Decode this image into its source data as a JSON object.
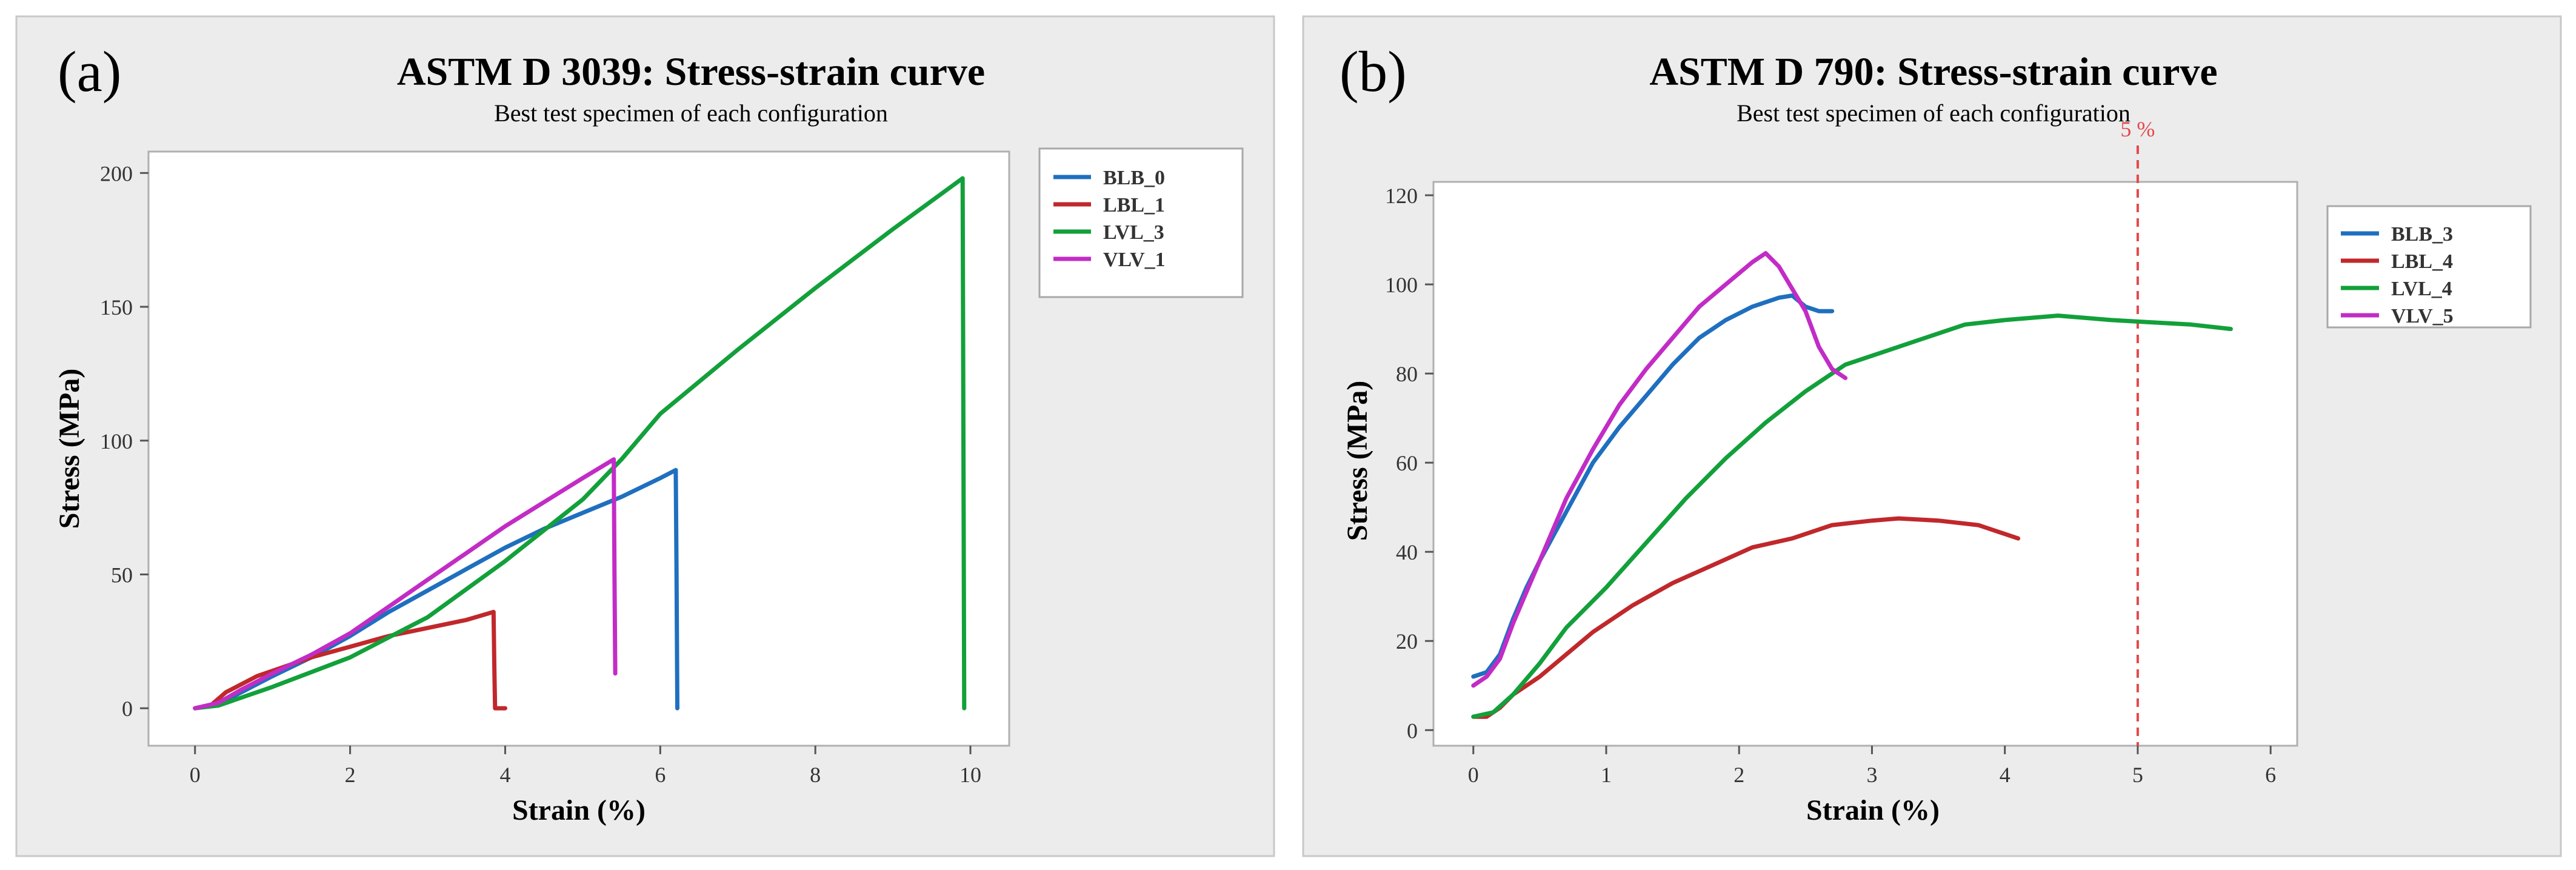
{
  "chart_data": [
    {
      "type": "line",
      "panel_label": "(a)",
      "title": "ASTM D 3039: Stress-strain curve",
      "subtitle": "Best test specimen of each configuration",
      "xlabel": "Strain (%)",
      "ylabel": "Stress (MPa)",
      "xlim": [
        -0.6,
        10.5
      ],
      "ylim": [
        -14,
        208
      ],
      "xticks": [
        0,
        2,
        4,
        6,
        8,
        10
      ],
      "yticks": [
        0,
        50,
        100,
        150,
        200
      ],
      "grid": false,
      "legend_position": "right",
      "series": [
        {
          "name": "BLB_0",
          "color": "#1f6fbf",
          "points": [
            [
              0,
              0
            ],
            [
              0.3,
              1.5
            ],
            [
              0.6,
              6
            ],
            [
              1,
              12
            ],
            [
              1.5,
              19
            ],
            [
              2,
              27
            ],
            [
              2.5,
              36
            ],
            [
              3,
              44
            ],
            [
              3.5,
              52
            ],
            [
              4,
              60
            ],
            [
              4.5,
              67
            ],
            [
              5,
              73
            ],
            [
              5.5,
              79
            ],
            [
              6,
              86
            ],
            [
              6.2,
              89
            ],
            [
              6.21,
              50
            ],
            [
              6.22,
              0
            ]
          ]
        },
        {
          "name": "LBL_1",
          "color": "#c0282b",
          "points": [
            [
              0,
              0
            ],
            [
              0.2,
              1
            ],
            [
              0.4,
              6
            ],
            [
              0.6,
              9
            ],
            [
              0.8,
              12
            ],
            [
              1,
              14
            ],
            [
              1.5,
              19
            ],
            [
              2,
              23
            ],
            [
              2.5,
              27
            ],
            [
              3,
              30
            ],
            [
              3.5,
              33
            ],
            [
              3.85,
              36
            ],
            [
              3.86,
              15
            ],
            [
              3.87,
              0
            ],
            [
              4,
              0
            ]
          ]
        },
        {
          "name": "LVL_3",
          "color": "#12a03a",
          "points": [
            [
              0,
              0
            ],
            [
              0.3,
              1
            ],
            [
              0.5,
              3
            ],
            [
              1,
              8
            ],
            [
              2,
              19
            ],
            [
              3,
              34
            ],
            [
              4,
              55
            ],
            [
              5,
              78
            ],
            [
              5.5,
              93
            ],
            [
              6,
              110
            ],
            [
              7,
              134
            ],
            [
              8,
              157
            ],
            [
              9,
              179
            ],
            [
              9.9,
              198
            ],
            [
              9.91,
              100
            ],
            [
              9.92,
              0
            ]
          ]
        },
        {
          "name": "VLV_1",
          "color": "#c22cc6",
          "points": [
            [
              0,
              0
            ],
            [
              0.3,
              2
            ],
            [
              0.6,
              7
            ],
            [
              1,
              13
            ],
            [
              1.5,
              20
            ],
            [
              2,
              28
            ],
            [
              2.5,
              38
            ],
            [
              3,
              48
            ],
            [
              3.5,
              58
            ],
            [
              4,
              68
            ],
            [
              4.5,
              77
            ],
            [
              5,
              86
            ],
            [
              5.4,
              93
            ],
            [
              5.41,
              50
            ],
            [
              5.42,
              13
            ]
          ]
        }
      ]
    },
    {
      "type": "line",
      "panel_label": "(b)",
      "title": "ASTM D 790: Stress-strain curve",
      "subtitle": "Best test specimen of each configuration",
      "xlabel": "Strain (%)",
      "ylabel": "Stress (MPa)",
      "xlim": [
        -0.3,
        6.2
      ],
      "ylim": [
        -3.5,
        123
      ],
      "xticks": [
        0,
        1,
        2,
        3,
        4,
        5,
        6
      ],
      "yticks": [
        0,
        20,
        40,
        60,
        80,
        100,
        120
      ],
      "grid": false,
      "legend_position": "right",
      "reference_line": {
        "x": 5,
        "label": "5 %",
        "color": "#e24a4a"
      },
      "series": [
        {
          "name": "BLB_3",
          "color": "#1f6fbf",
          "points": [
            [
              0,
              12
            ],
            [
              0.1,
              13
            ],
            [
              0.2,
              17
            ],
            [
              0.3,
              25
            ],
            [
              0.4,
              32
            ],
            [
              0.5,
              38
            ],
            [
              0.7,
              49
            ],
            [
              0.9,
              60
            ],
            [
              1.1,
              68
            ],
            [
              1.3,
              75
            ],
            [
              1.5,
              82
            ],
            [
              1.7,
              88
            ],
            [
              1.9,
              92
            ],
            [
              2.1,
              95
            ],
            [
              2.3,
              97
            ],
            [
              2.4,
              97.5
            ],
            [
              2.5,
              95
            ],
            [
              2.6,
              94
            ],
            [
              2.7,
              94
            ]
          ]
        },
        {
          "name": "LBL_4",
          "color": "#c0282b",
          "points": [
            [
              0,
              3
            ],
            [
              0.1,
              3
            ],
            [
              0.2,
              5
            ],
            [
              0.3,
              8
            ],
            [
              0.5,
              12
            ],
            [
              0.7,
              17
            ],
            [
              0.9,
              22
            ],
            [
              1.2,
              28
            ],
            [
              1.5,
              33
            ],
            [
              1.8,
              37
            ],
            [
              2.1,
              41
            ],
            [
              2.4,
              43
            ],
            [
              2.7,
              46
            ],
            [
              3,
              47
            ],
            [
              3.2,
              47.5
            ],
            [
              3.5,
              47
            ],
            [
              3.8,
              46
            ],
            [
              4.1,
              43
            ]
          ]
        },
        {
          "name": "LVL_4",
          "color": "#12a03a",
          "points": [
            [
              0,
              3
            ],
            [
              0.15,
              4
            ],
            [
              0.3,
              8
            ],
            [
              0.5,
              15
            ],
            [
              0.7,
              23
            ],
            [
              1,
              32
            ],
            [
              1.3,
              42
            ],
            [
              1.6,
              52
            ],
            [
              1.9,
              61
            ],
            [
              2.2,
              69
            ],
            [
              2.5,
              76
            ],
            [
              2.8,
              82
            ],
            [
              3.1,
              85
            ],
            [
              3.4,
              88
            ],
            [
              3.7,
              91
            ],
            [
              4,
              92
            ],
            [
              4.4,
              93
            ],
            [
              4.8,
              92
            ],
            [
              5.1,
              91.5
            ],
            [
              5.4,
              91
            ],
            [
              5.7,
              90
            ]
          ]
        },
        {
          "name": "VLV_5",
          "color": "#c22cc6",
          "points": [
            [
              0,
              10
            ],
            [
              0.1,
              12
            ],
            [
              0.2,
              16
            ],
            [
              0.3,
              24
            ],
            [
              0.5,
              38
            ],
            [
              0.7,
              52
            ],
            [
              0.9,
              63
            ],
            [
              1.1,
              73
            ],
            [
              1.3,
              81
            ],
            [
              1.5,
              88
            ],
            [
              1.7,
              95
            ],
            [
              1.9,
              100
            ],
            [
              2.1,
              105
            ],
            [
              2.2,
              107
            ],
            [
              2.3,
              104
            ],
            [
              2.4,
              99
            ],
            [
              2.5,
              94
            ],
            [
              2.6,
              86
            ],
            [
              2.7,
              81
            ],
            [
              2.8,
              79
            ]
          ]
        }
      ]
    }
  ]
}
